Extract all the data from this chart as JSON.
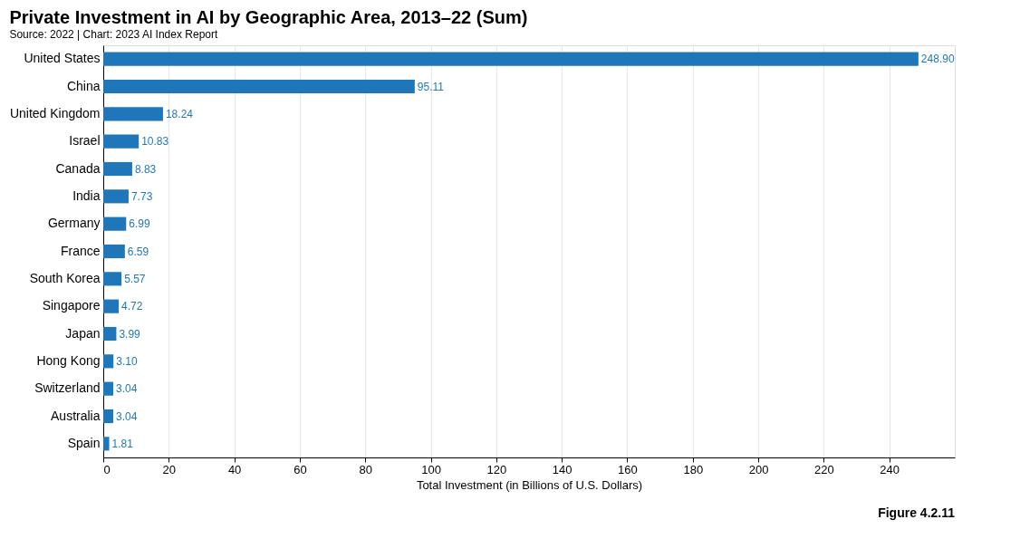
{
  "chart_data": {
    "type": "bar",
    "orientation": "horizontal",
    "title": "Private Investment in AI by Geographic Area, 2013–22 (Sum)",
    "subtitle": "Source: 2022 | Chart: 2023 AI Index Report",
    "xlabel": "Total Investment (in Billions of U.S. Dollars)",
    "categories": [
      "United States",
      "China",
      "United Kingdom",
      "Israel",
      "Canada",
      "India",
      "Germany",
      "France",
      "South Korea",
      "Singapore",
      "Japan",
      "Hong Kong",
      "Switzerland",
      "Australia",
      "Spain"
    ],
    "values": [
      248.9,
      95.11,
      18.24,
      10.83,
      8.83,
      7.73,
      6.99,
      6.59,
      5.57,
      4.72,
      3.99,
      3.1,
      3.04,
      3.04,
      1.81
    ],
    "value_labels": [
      "248.90",
      "95.11",
      "18.24",
      "10.83",
      "8.83",
      "7.73",
      "6.99",
      "6.59",
      "5.57",
      "4.72",
      "3.99",
      "3.10",
      "3.04",
      "3.04",
      "1.81"
    ],
    "color": "#1f77b9",
    "xlim": [
      0,
      260
    ],
    "xticks": [
      0,
      20,
      40,
      60,
      80,
      100,
      120,
      140,
      160,
      180,
      200,
      220,
      240
    ],
    "grid": "x",
    "annotations": [
      "Figure 4.2.11"
    ]
  }
}
